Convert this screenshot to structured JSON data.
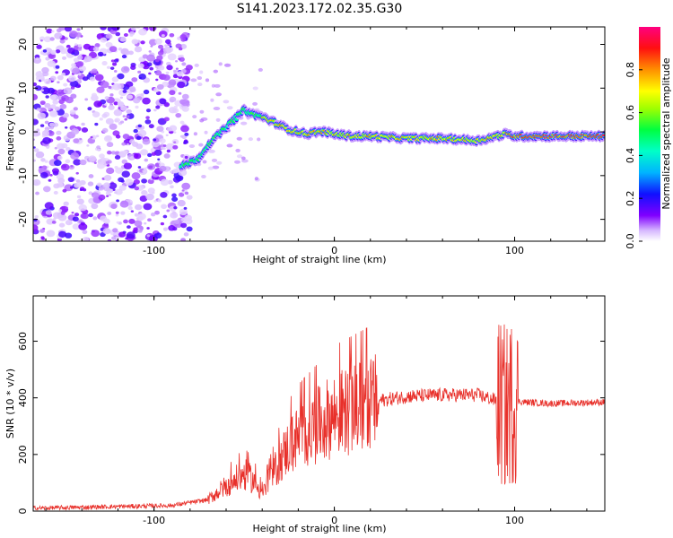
{
  "title": "S141.2023.172.02.35.G30",
  "chart_data": [
    {
      "type": "heatmap",
      "xlabel": "Height of straight line (km)",
      "ylabel": "Frequency (Hz)",
      "xlim": [
        -167,
        150
      ],
      "ylim": [
        -25,
        24
      ],
      "xticks": [
        -100,
        0,
        100
      ],
      "yticks": [
        -20,
        -10,
        0,
        10,
        20
      ],
      "colorbar": {
        "label": "Normalized spectral amplitude",
        "range": [
          0,
          1
        ],
        "ticks": [
          0.0,
          0.2,
          0.4,
          0.6,
          0.8
        ],
        "colormap": "rainbow",
        "colors": [
          "#ffffff",
          "#c8a0ff",
          "#8000ff",
          "#0000ff",
          "#00c8ff",
          "#00ff80",
          "#c0ff00",
          "#ffff00",
          "#ff8000",
          "#ff0000",
          "#ff0080"
        ]
      },
      "ridge": {
        "x": [
          -85,
          -80,
          -75,
          -70,
          -65,
          -60,
          -55,
          -50,
          -45,
          -40,
          -35,
          -30,
          -25,
          -20,
          -15,
          -10,
          -5,
          0,
          10,
          20,
          40,
          60,
          80,
          90,
          95,
          100,
          120,
          150
        ],
        "y": [
          -8,
          -7,
          -6,
          -3,
          -1,
          1,
          3,
          5,
          4,
          3.5,
          2.5,
          1.5,
          0.5,
          0,
          -0.5,
          0,
          0,
          -0.5,
          -1,
          -1,
          -1.5,
          -1.5,
          -2,
          -1,
          -0.5,
          -1,
          -1,
          -1
        ]
      }
    },
    {
      "type": "line",
      "xlabel": "Height of straight line (km)",
      "ylabel": "SNR (10 * v/v)",
      "xlim": [
        -167,
        150
      ],
      "ylim": [
        0,
        760
      ],
      "xticks": [
        -100,
        0,
        100
      ],
      "yticks": [
        0,
        200,
        400,
        600
      ],
      "color": "#e8302a",
      "envelope": {
        "x": [
          -167,
          -90,
          -70,
          -60,
          -50,
          -45,
          -40,
          -35,
          -30,
          -25,
          -20,
          -10,
          0,
          10,
          20,
          25,
          40,
          60,
          80,
          90,
          95,
          97,
          100,
          105,
          120,
          150
        ],
        "y": [
          10,
          20,
          40,
          90,
          130,
          110,
          60,
          120,
          180,
          230,
          260,
          300,
          340,
          360,
          380,
          390,
          405,
          410,
          410,
          390,
          360,
          380,
          390,
          385,
          380,
          385
        ]
      }
    }
  ]
}
